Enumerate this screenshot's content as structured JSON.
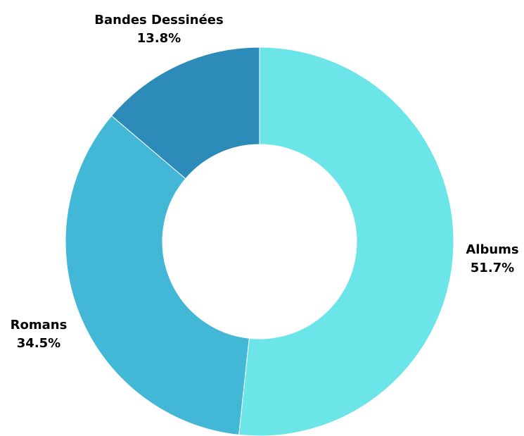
{
  "chart_data": {
    "type": "pie",
    "donut": true,
    "title": "",
    "categories": [
      "Albums",
      "Romans",
      "Bandes Dessinées"
    ],
    "values": [
      51.7,
      34.5,
      13.8
    ],
    "value_labels": [
      "51.7%",
      "34.5%",
      "13.8%"
    ],
    "colors": [
      "#6be5e8",
      "#42b7d6",
      "#2d8bba"
    ],
    "start": "top",
    "direction": "clockwise",
    "legend": "none"
  }
}
